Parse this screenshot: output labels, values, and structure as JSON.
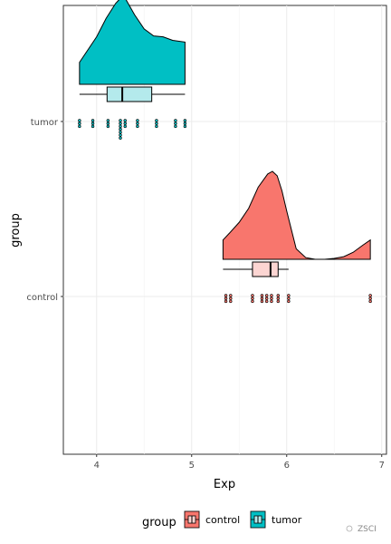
{
  "chart_data": {
    "type": "raincloud",
    "xlabel": "Exp",
    "ylabel": "group",
    "xlim": [
      3.65,
      7.05
    ],
    "x_ticks": [
      4,
      5,
      6,
      7
    ],
    "grid": true,
    "legend_placement": "bottom",
    "legend": {
      "title": "group",
      "entries": [
        "control",
        "tumor"
      ]
    },
    "groups": [
      {
        "name": "tumor",
        "color": "#00BFC4",
        "light_color": "#B4EAEC",
        "density": {
          "x": [
            3.82,
            4.0,
            4.1,
            4.2,
            4.27,
            4.3,
            4.4,
            4.5,
            4.6,
            4.7,
            4.8,
            4.93
          ],
          "y": [
            0.25,
            0.54,
            0.75,
            0.92,
            1.0,
            0.98,
            0.79,
            0.63,
            0.55,
            0.54,
            0.5,
            0.48
          ]
        },
        "box": {
          "lower_whisker": 3.82,
          "q1": 4.11,
          "median": 4.27,
          "q3": 4.58,
          "upper_whisker": 4.93
        },
        "points": [
          3.82,
          3.96,
          4.12,
          4.25,
          4.25,
          4.25,
          4.3,
          4.43,
          4.63,
          4.83,
          4.93
        ]
      },
      {
        "name": "control",
        "color": "#F8766D",
        "light_color": "#FCD5D2",
        "density": {
          "x": [
            5.33,
            5.4,
            5.5,
            5.6,
            5.7,
            5.8,
            5.85,
            5.9,
            5.95,
            6.0,
            6.1,
            6.2,
            6.3,
            6.4,
            6.5,
            6.6,
            6.7,
            6.8,
            6.88
          ],
          "y": [
            0.22,
            0.3,
            0.42,
            0.58,
            0.82,
            0.97,
            1.0,
            0.95,
            0.78,
            0.55,
            0.12,
            0.02,
            0.0,
            0.0,
            0.01,
            0.03,
            0.08,
            0.16,
            0.22
          ]
        },
        "box": {
          "lower_whisker": 5.33,
          "q1": 5.64,
          "median": 5.83,
          "q3": 5.91,
          "upper_whisker": 6.02
        },
        "points": [
          5.36,
          5.41,
          5.64,
          5.74,
          5.79,
          5.84,
          5.91,
          6.02,
          6.88
        ]
      }
    ]
  },
  "watermark": {
    "text": "ZSCI"
  }
}
